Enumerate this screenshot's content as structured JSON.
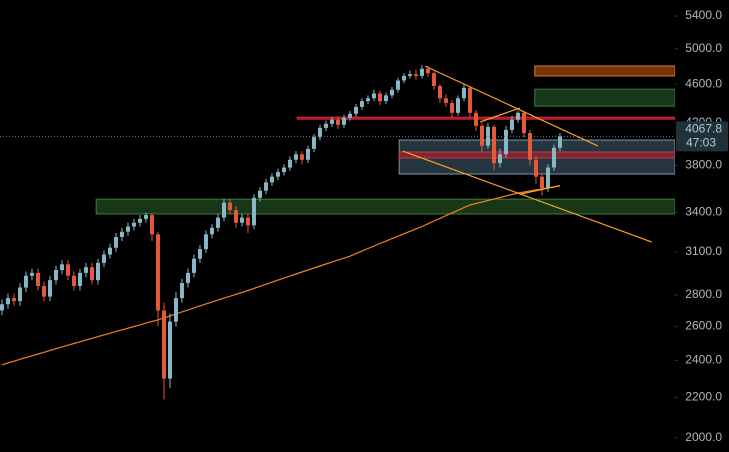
{
  "chart_data": {
    "type": "candlestick",
    "log_scale": true,
    "ylim": [
      1935,
      5608
    ],
    "xlim": [
      -0.33,
      112.17
    ],
    "yticks": [
      {
        "value": 5400,
        "label": "5400.0"
      },
      {
        "value": 5000,
        "label": "5000.0"
      },
      {
        "value": 4600,
        "label": "4600.0"
      },
      {
        "value": 4200,
        "label": "4200.0"
      },
      {
        "value": 3800,
        "label": "3800.0"
      },
      {
        "value": 3400,
        "label": "3400.0"
      },
      {
        "value": 3100,
        "label": "3100.0"
      },
      {
        "value": 2800,
        "label": "2800.0"
      },
      {
        "value": 2600,
        "label": "2600.0"
      },
      {
        "value": 2400,
        "label": "2400.0"
      },
      {
        "value": 2200,
        "label": "2200.0"
      },
      {
        "value": 2000,
        "label": "2000.0"
      }
    ],
    "up_color": "#86b8c6",
    "down_color": "#e4593a",
    "open": [
      2700,
      2740,
      2780,
      2760,
      2850,
      2930,
      2950,
      2860,
      2790,
      2900,
      2970,
      3010,
      2930,
      2860,
      2950,
      2990,
      2900,
      3020,
      3080,
      3130,
      3210,
      3250,
      3290,
      3320,
      3350,
      3380,
      3230,
      2700,
      2300,
      2630,
      2780,
      2880,
      2950,
      3050,
      3120,
      3230,
      3280,
      3360,
      3480,
      3420,
      3320,
      3360,
      3300,
      3520,
      3580,
      3650,
      3700,
      3740,
      3780,
      3850,
      3900,
      3850,
      3950,
      4060,
      4150,
      4190,
      4230,
      4180,
      4250,
      4290,
      4360,
      4420,
      4450,
      4500,
      4420,
      4480,
      4540,
      4640,
      4690,
      4710,
      4690,
      4770,
      4720,
      4580,
      4450,
      4400,
      4300,
      4450,
      4560,
      4300,
      4170,
      3980,
      4160,
      3820,
      3900,
      4130,
      4230,
      4300,
      4100,
      3850,
      3700,
      3600,
      3780,
      3960
    ],
    "high": [
      2770,
      2810,
      2810,
      2880,
      2960,
      2980,
      2980,
      2890,
      2930,
      3000,
      3040,
      3040,
      2960,
      2980,
      3020,
      3020,
      3050,
      3110,
      3160,
      3240,
      3280,
      3320,
      3350,
      3380,
      3400,
      3400,
      3250,
      2750,
      2680,
      2820,
      2910,
      2980,
      3080,
      3150,
      3260,
      3310,
      3390,
      3510,
      3510,
      3450,
      3390,
      3390,
      3550,
      3610,
      3680,
      3730,
      3770,
      3810,
      3880,
      3930,
      3930,
      3980,
      4090,
      4180,
      4220,
      4260,
      4260,
      4280,
      4320,
      4390,
      4450,
      4480,
      4540,
      4530,
      4510,
      4570,
      4670,
      4720,
      4750,
      4760,
      4810,
      4800,
      4740,
      4600,
      4490,
      4430,
      4480,
      4600,
      4580,
      4330,
      4200,
      4200,
      4180,
      3950,
      4170,
      4270,
      4320,
      4320,
      4130,
      3880,
      3730,
      3810,
      3990,
      4100
    ],
    "low": [
      2670,
      2710,
      2730,
      2730,
      2820,
      2900,
      2830,
      2760,
      2760,
      2870,
      2940,
      2900,
      2830,
      2830,
      2920,
      2870,
      2870,
      2990,
      3050,
      3100,
      3180,
      3220,
      3260,
      3290,
      3320,
      3180,
      2600,
      2190,
      2250,
      2600,
      2750,
      2850,
      2920,
      3020,
      3090,
      3200,
      3250,
      3330,
      3390,
      3280,
      3290,
      3240,
      3270,
      3490,
      3550,
      3620,
      3670,
      3710,
      3750,
      3820,
      3810,
      3820,
      3920,
      4030,
      4120,
      4160,
      4140,
      4150,
      4220,
      4260,
      4330,
      4390,
      4420,
      4380,
      4390,
      4450,
      4510,
      4610,
      4660,
      4650,
      4660,
      4680,
      4540,
      4400,
      4360,
      4250,
      4270,
      4420,
      4250,
      4120,
      3920,
      3950,
      3760,
      3780,
      3870,
      4100,
      4200,
      4060,
      3800,
      3640,
      3540,
      3570,
      3750,
      3930
    ],
    "close": [
      2740,
      2780,
      2760,
      2850,
      2930,
      2950,
      2860,
      2790,
      2900,
      2970,
      3010,
      2930,
      2860,
      2950,
      2990,
      2900,
      3020,
      3080,
      3130,
      3210,
      3250,
      3290,
      3320,
      3350,
      3380,
      3230,
      2700,
      2300,
      2630,
      2780,
      2880,
      2950,
      3050,
      3120,
      3230,
      3280,
      3360,
      3480,
      3420,
      3320,
      3360,
      3300,
      3520,
      3580,
      3650,
      3700,
      3740,
      3780,
      3850,
      3900,
      3850,
      3950,
      4060,
      4150,
      4190,
      4230,
      4180,
      4250,
      4290,
      4360,
      4420,
      4450,
      4500,
      4420,
      4480,
      4540,
      4640,
      4690,
      4710,
      4690,
      4770,
      4720,
      4580,
      4450,
      4400,
      4300,
      4450,
      4560,
      4300,
      4170,
      3980,
      4160,
      3820,
      3900,
      4130,
      4230,
      4300,
      4100,
      3850,
      3700,
      3600,
      3780,
      3960,
      4067.8
    ],
    "ma": [
      2376,
      2386,
      2396,
      2407,
      2417,
      2427,
      2437,
      2447,
      2458,
      2468,
      2478,
      2488,
      2498,
      2508,
      2519,
      2529,
      2539,
      2549,
      2559,
      2570,
      2580,
      2590,
      2600,
      2610,
      2621,
      2631,
      2641,
      2654,
      2666,
      2679,
      2691,
      2704,
      2717,
      2729,
      2742,
      2754,
      2767,
      2780,
      2792,
      2805,
      2817,
      2830,
      2844,
      2858,
      2872,
      2886,
      2900,
      2914,
      2928,
      2942,
      2956,
      2970,
      2984,
      2998,
      3012,
      3026,
      3040,
      3054,
      3068,
      3087,
      3105,
      3124,
      3142,
      3161,
      3179,
      3198,
      3216,
      3235,
      3253,
      3272,
      3290,
      3311,
      3333,
      3354,
      3376,
      3397,
      3418,
      3440,
      3461,
      3473,
      3486,
      3498,
      3511,
      3523,
      3535,
      3548,
      3560,
      3569,
      3577,
      3586,
      3594,
      3603,
      3611,
      3620
    ],
    "ma_color": "#f07f1e",
    "trend_color": "#f5a425",
    "trendlines": [
      {
        "x": [
          70.5,
          99.3
        ],
        "y": [
          4801,
          3977
        ]
      },
      {
        "x": [
          66.8,
          108.3
        ],
        "y": [
          3930,
          3172
        ]
      },
      {
        "x": [
          86.3,
          93
        ],
        "y": [
          3550,
          3623
        ]
      },
      {
        "x": [
          79.7,
          86.3
        ],
        "y": [
          4208,
          4349
        ]
      }
    ],
    "zones": [
      {
        "ylim": [
          3389,
          3509
        ],
        "x0": 15.7,
        "fill": "#1c3f1c",
        "stroke": "#3d7f3d"
      },
      {
        "ylim": [
          3723,
          4033
        ],
        "x0": 66.2,
        "fill": "#2c3f4c",
        "stroke": "#7d95a5"
      },
      {
        "ylim": [
          3866,
          3921
        ],
        "x0": 66.2,
        "fill": "#8e2432",
        "stroke": "#c23a48"
      },
      {
        "ylim": [
          4236,
          4256
        ],
        "x0": 49.2,
        "fill": "#b3172c",
        "stroke": "#d8283e"
      },
      {
        "ylim": [
          4368,
          4546
        ],
        "x0": 88.8,
        "fill": "#1c3f1c",
        "stroke": "#3d7f3d"
      },
      {
        "ylim": [
          4690,
          4801
        ],
        "x0": 88.8,
        "fill": "#8a3c0c",
        "stroke": "#e07a22"
      }
    ],
    "countdown": "47:03"
  }
}
